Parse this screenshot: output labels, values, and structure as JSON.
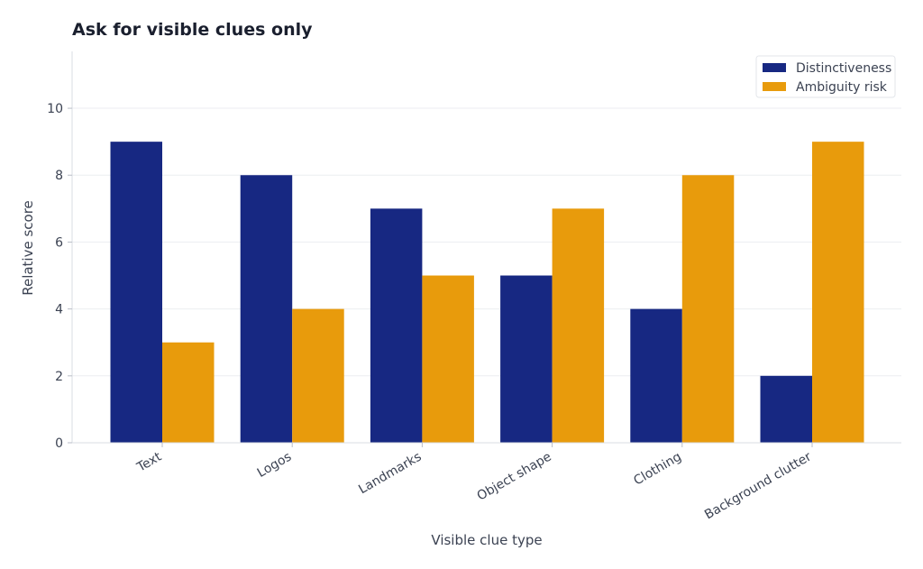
{
  "chart_data": {
    "type": "bar",
    "title": "Ask for visible clues only",
    "xlabel": "Visible clue type",
    "ylabel": "Relative score",
    "categories": [
      "Text",
      "Logos",
      "Landmarks",
      "Object shape",
      "Clothing",
      "Background clutter"
    ],
    "series": [
      {
        "name": "Distinctiveness",
        "values": [
          9,
          8,
          7,
          5,
          4,
          2
        ],
        "color": "#172882"
      },
      {
        "name": "Ambiguity risk",
        "values": [
          3,
          4,
          5,
          7,
          8,
          9
        ],
        "color": "#e89b0c"
      }
    ],
    "ylim": [
      0,
      11.7
    ],
    "yticks": [
      0,
      2,
      4,
      6,
      8,
      10
    ],
    "grid": true,
    "legend_position": "top-right"
  }
}
